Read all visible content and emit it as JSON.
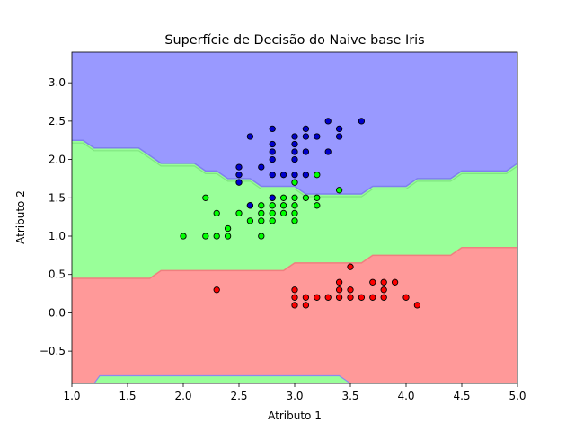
{
  "chart_data": {
    "type": "scatter",
    "title": "Superfície de Decisão do Naive base Iris",
    "xlabel": "Atributo 1",
    "ylabel": "Atributo 2",
    "xlim": [
      1.0,
      5.0
    ],
    "ylim": [
      -0.92,
      3.4
    ],
    "xticks": [
      "1.0",
      "1.5",
      "2.0",
      "2.5",
      "3.0",
      "3.5",
      "4.0",
      "4.5",
      "5.0"
    ],
    "yticks": [
      "−0.5",
      "0.0",
      "0.5",
      "1.0",
      "1.5",
      "2.0",
      "2.5",
      "3.0"
    ],
    "grid": false,
    "legend": "none",
    "region_colors": {
      "class_0": "#ff9999",
      "class_1": "#99ff99",
      "class_2": "#9999ff"
    },
    "boundaries": {
      "red_green": [
        [
          1.0,
          0.45
        ],
        [
          1.7,
          0.45
        ],
        [
          1.8,
          0.55
        ],
        [
          2.9,
          0.55
        ],
        [
          3.0,
          0.65
        ],
        [
          3.6,
          0.65
        ],
        [
          3.7,
          0.75
        ],
        [
          4.4,
          0.75
        ],
        [
          4.5,
          0.85
        ],
        [
          5.0,
          0.85
        ]
      ],
      "green_blue": [
        [
          1.0,
          2.25
        ],
        [
          1.1,
          2.25
        ],
        [
          1.2,
          2.15
        ],
        [
          1.6,
          2.15
        ],
        [
          1.7,
          2.05
        ],
        [
          1.8,
          1.95
        ],
        [
          2.1,
          1.95
        ],
        [
          2.2,
          1.85
        ],
        [
          2.3,
          1.85
        ],
        [
          2.4,
          1.75
        ],
        [
          2.6,
          1.75
        ],
        [
          2.7,
          1.65
        ],
        [
          3.0,
          1.65
        ],
        [
          3.1,
          1.55
        ],
        [
          3.6,
          1.55
        ],
        [
          3.7,
          1.65
        ],
        [
          4.0,
          1.65
        ],
        [
          4.1,
          1.75
        ],
        [
          4.4,
          1.75
        ],
        [
          4.5,
          1.85
        ],
        [
          4.9,
          1.85
        ],
        [
          5.0,
          1.95
        ]
      ],
      "bottom_band": [
        [
          1.2,
          -0.92
        ],
        [
          1.25,
          -0.82
        ],
        [
          3.4,
          -0.82
        ],
        [
          3.5,
          -0.92
        ]
      ]
    },
    "series": [
      {
        "color": "#ff0000",
        "points": [
          [
            3.0,
            0.1
          ],
          [
            3.0,
            0.2
          ],
          [
            3.0,
            0.3
          ],
          [
            3.1,
            0.1
          ],
          [
            3.1,
            0.2
          ],
          [
            3.2,
            0.2
          ],
          [
            3.3,
            0.2
          ],
          [
            3.4,
            0.2
          ],
          [
            3.4,
            0.3
          ],
          [
            3.4,
            0.4
          ],
          [
            3.5,
            0.2
          ],
          [
            3.5,
            0.3
          ],
          [
            3.5,
            0.6
          ],
          [
            3.6,
            0.2
          ],
          [
            3.7,
            0.2
          ],
          [
            3.7,
            0.4
          ],
          [
            3.8,
            0.2
          ],
          [
            3.8,
            0.3
          ],
          [
            3.8,
            0.4
          ],
          [
            3.9,
            0.4
          ],
          [
            4.0,
            0.2
          ],
          [
            4.1,
            0.1
          ],
          [
            2.3,
            0.3
          ]
        ]
      },
      {
        "color": "#00ff00",
        "points": [
          [
            2.0,
            1.0
          ],
          [
            2.2,
            1.0
          ],
          [
            2.3,
            1.0
          ],
          [
            2.4,
            1.0
          ],
          [
            2.4,
            1.1
          ],
          [
            2.2,
            1.5
          ],
          [
            2.3,
            1.3
          ],
          [
            2.5,
            1.3
          ],
          [
            2.6,
            1.2
          ],
          [
            2.6,
            1.4
          ],
          [
            2.7,
            1.0
          ],
          [
            2.7,
            1.2
          ],
          [
            2.7,
            1.3
          ],
          [
            2.7,
            1.4
          ],
          [
            2.8,
            1.2
          ],
          [
            2.8,
            1.3
          ],
          [
            2.8,
            1.4
          ],
          [
            2.8,
            1.5
          ],
          [
            2.9,
            1.3
          ],
          [
            2.9,
            1.4
          ],
          [
            2.9,
            1.5
          ],
          [
            3.0,
            1.2
          ],
          [
            3.0,
            1.3
          ],
          [
            3.0,
            1.4
          ],
          [
            3.0,
            1.5
          ],
          [
            3.0,
            1.7
          ],
          [
            3.1,
            1.5
          ],
          [
            3.2,
            1.4
          ],
          [
            3.2,
            1.5
          ],
          [
            3.2,
            1.8
          ],
          [
            3.4,
            1.6
          ]
        ]
      },
      {
        "color": "#0000cc",
        "points": [
          [
            2.5,
            1.7
          ],
          [
            2.5,
            1.8
          ],
          [
            2.5,
            1.9
          ],
          [
            2.6,
            1.4
          ],
          [
            2.6,
            2.3
          ],
          [
            2.7,
            1.9
          ],
          [
            2.8,
            1.5
          ],
          [
            2.8,
            1.8
          ],
          [
            2.8,
            2.0
          ],
          [
            2.8,
            2.1
          ],
          [
            2.8,
            2.2
          ],
          [
            2.8,
            2.4
          ],
          [
            2.9,
            1.8
          ],
          [
            3.0,
            1.8
          ],
          [
            3.0,
            2.0
          ],
          [
            3.0,
            2.1
          ],
          [
            3.0,
            2.2
          ],
          [
            3.0,
            2.3
          ],
          [
            3.1,
            1.8
          ],
          [
            3.1,
            2.1
          ],
          [
            3.1,
            2.3
          ],
          [
            3.1,
            2.4
          ],
          [
            3.2,
            2.3
          ],
          [
            3.3,
            2.1
          ],
          [
            3.3,
            2.5
          ],
          [
            3.4,
            2.3
          ],
          [
            3.4,
            2.4
          ],
          [
            3.6,
            2.5
          ]
        ]
      }
    ]
  }
}
